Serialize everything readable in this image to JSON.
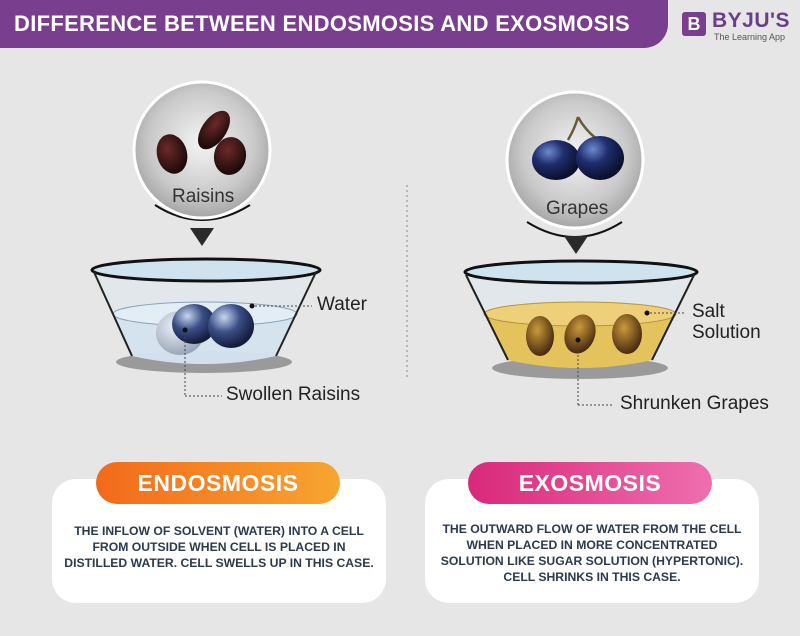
{
  "header": {
    "title": "DIFFERENCE BETWEEN ENDOSMOSIS AND EXOSMOSIS"
  },
  "logo": {
    "mark": "B",
    "name": "BYJU'S",
    "tagline": "The Learning App"
  },
  "colors": {
    "header": "#7a3e8f",
    "endo_pill_start": "#f26a1b",
    "endo_pill_end": "#f7a530",
    "exo_pill_start": "#d9297a",
    "exo_pill_end": "#ee6fae",
    "water": "#cfe3ef",
    "salt_solution": "#e5c35c"
  },
  "left": {
    "circle_label": "Raisins",
    "labels": {
      "liquid": "Water",
      "result": "Swollen Raisins"
    },
    "card": {
      "title": "ENDOSMOSIS",
      "description": [
        "THE INFLOW OF SOLVENT (WATER) INTO A CELL",
        "FROM OUTSIDE WHEN CELL IS PLACED IN",
        "DISTILLED WATER. CELL SWELLS UP IN THIS CASE."
      ]
    }
  },
  "right": {
    "circle_label": "Grapes",
    "labels": {
      "liquid_line1": "Salt",
      "liquid_line2": "Solution",
      "result": "Shrunken Grapes"
    },
    "card": {
      "title": "EXOSMOSIS",
      "description": [
        "THE OUTWARD FLOW OF WATER FROM THE CELL",
        "WHEN PLACED IN MORE CONCENTRATED",
        "SOLUTION LIKE SUGAR SOLUTION (HYPERTONIC).",
        "CELL SHRINKS IN THIS CASE."
      ]
    }
  }
}
